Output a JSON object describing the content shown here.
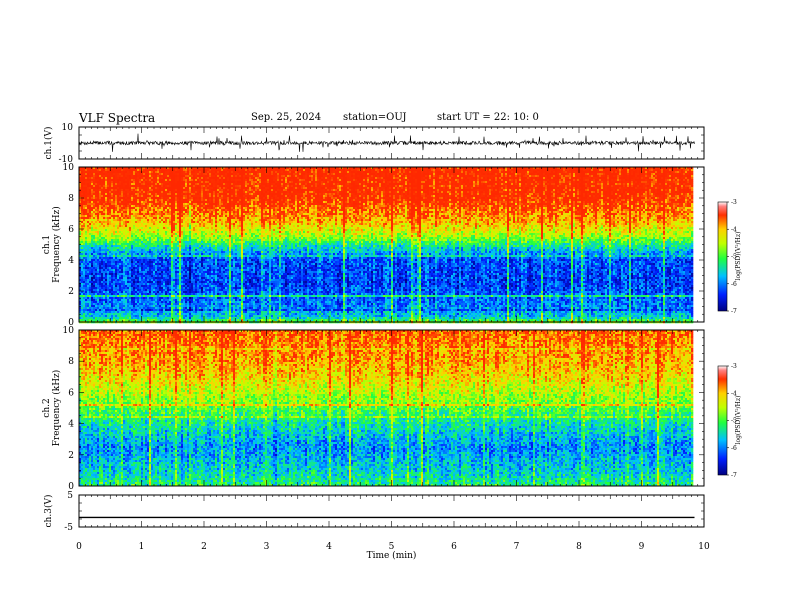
{
  "header": {
    "title": "VLF Spectra",
    "date": "Sep. 25, 2024",
    "station": "station=OUJ",
    "start": "start UT = 22: 10: 0"
  },
  "colors": {
    "frame": "#000000",
    "spectrogram_high": "#ff2a00",
    "spectrogram_mid": "#20ff40",
    "spectrogram_low": "#1040c0"
  },
  "chart_data": [
    {
      "type": "line",
      "panel": "ch1-waveform",
      "ylabel": "ch.1(V)",
      "ylim": [
        -10,
        10
      ],
      "yticks": [
        "10",
        "-10"
      ],
      "xlim": [
        0,
        10
      ],
      "trace_level": 0,
      "trace_spread": 4.5,
      "data_end_min": 9.85
    },
    {
      "type": "heatmap",
      "panel": "ch1-spectrogram",
      "ylabel": "ch.1\nFrequency (kHz)",
      "ylim": [
        0,
        10
      ],
      "yticks": [
        "0",
        "2",
        "4",
        "6",
        "8",
        "10"
      ],
      "xlim": [
        0,
        10
      ],
      "data_end_min": 9.85,
      "colorbar": {
        "label": "log(PSD)(V²/Hz)",
        "range": [
          -7,
          -3
        ],
        "ticks": [
          "-3",
          "-4",
          "-5",
          "-6",
          "-7"
        ]
      },
      "profile_log_psd": [
        {
          "khz": 0.0,
          "v": -4.8
        },
        {
          "khz": 0.3,
          "v": -5.6
        },
        {
          "khz": 1.0,
          "v": -6.0
        },
        {
          "khz": 2.5,
          "v": -6.3
        },
        {
          "khz": 4.0,
          "v": -6.2
        },
        {
          "khz": 4.8,
          "v": -5.5
        },
        {
          "khz": 5.5,
          "v": -4.6
        },
        {
          "khz": 6.5,
          "v": -3.9
        },
        {
          "khz": 8.0,
          "v": -3.3
        },
        {
          "khz": 10.0,
          "v": -3.2
        }
      ]
    },
    {
      "type": "heatmap",
      "panel": "ch2-spectrogram",
      "ylabel": "ch.2\nFrequency (kHz)",
      "ylim": [
        0,
        10
      ],
      "yticks": [
        "0",
        "2",
        "4",
        "6",
        "8",
        "10"
      ],
      "xlim": [
        0,
        10
      ],
      "data_end_min": 9.85,
      "colorbar": {
        "label": "log(PSD)(V²/Hz)",
        "range": [
          -7,
          -3
        ],
        "ticks": [
          "-3",
          "-4",
          "-5",
          "-6",
          "-7"
        ]
      },
      "profile_log_psd": [
        {
          "khz": 0.0,
          "v": -5.2
        },
        {
          "khz": 1.0,
          "v": -5.6
        },
        {
          "khz": 2.5,
          "v": -5.9
        },
        {
          "khz": 4.0,
          "v": -5.4
        },
        {
          "khz": 5.5,
          "v": -4.7
        },
        {
          "khz": 7.0,
          "v": -4.1
        },
        {
          "khz": 8.5,
          "v": -3.8
        },
        {
          "khz": 10.0,
          "v": -3.6
        }
      ]
    },
    {
      "type": "line",
      "panel": "ch3-waveform",
      "ylabel": "ch.3(V)",
      "ylim": [
        -5,
        5
      ],
      "yticks": [
        "5",
        "-5"
      ],
      "xlim": [
        0,
        10
      ],
      "trace_level": -2.0,
      "trace_spread": 0,
      "data_end_min": 9.85
    }
  ],
  "xaxis": {
    "label": "Time (min)",
    "ticks": [
      "0",
      "1",
      "2",
      "3",
      "4",
      "5",
      "6",
      "7",
      "8",
      "9",
      "10"
    ]
  }
}
